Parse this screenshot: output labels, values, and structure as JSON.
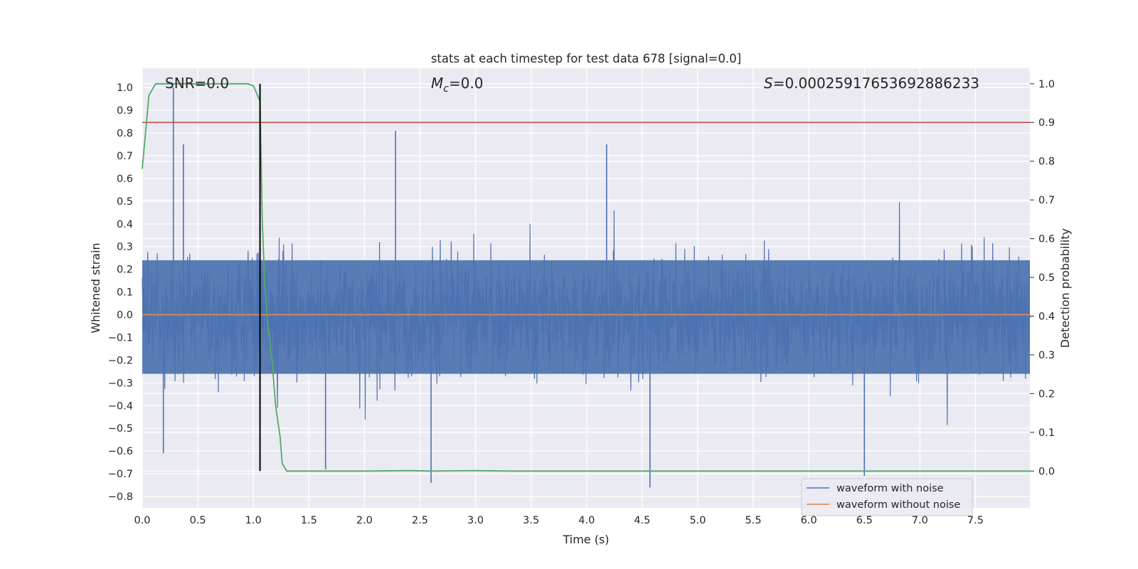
{
  "chart_data": {
    "type": "line",
    "title": "stats at each timestep for test data 678 [signal=0.0]",
    "xlabel": "Time (s)",
    "ylabel": "Whitened strain",
    "y2label": "Detection probability",
    "xlim": [
      0.0,
      7.99
    ],
    "ylim": [
      -0.85,
      1.085
    ],
    "y2lim": [
      -0.095,
      1.04
    ],
    "grid": true,
    "legend_position": "lower-right",
    "x_ticks": [
      "0.0",
      "0.5",
      "1.0",
      "1.5",
      "2.0",
      "2.5",
      "3.0",
      "3.5",
      "4.0",
      "4.5",
      "5.0",
      "5.5",
      "6.0",
      "6.5",
      "7.0",
      "7.5"
    ],
    "y_ticks": [
      "1.0",
      "0.9",
      "0.8",
      "0.7",
      "0.6",
      "0.5",
      "0.4",
      "0.3",
      "0.2",
      "0.1",
      "0.0",
      "−0.1",
      "−0.2",
      "−0.3",
      "−0.4",
      "−0.5",
      "−0.6",
      "−0.7",
      "−0.8"
    ],
    "y2_ticks": [
      "1.0",
      "0.9",
      "0.8",
      "0.7",
      "0.6",
      "0.5",
      "0.4",
      "0.3",
      "0.2",
      "0.1",
      "0.0"
    ],
    "annotations": {
      "snr": "SNR=0.0",
      "mc_symbol": "M",
      "mc_subscript": "c",
      "mc_value": "=0.0",
      "s_symbol": "S",
      "s_value": "=0.00025917653692886233"
    },
    "series": [
      {
        "name": "waveform with noise",
        "color": "#4c72b0",
        "axis": "left",
        "style": "dense noise, envelope approx ±0.4 with spikes",
        "peaks": [
          [
            0.28,
            1.0
          ],
          [
            0.37,
            0.75
          ],
          [
            2.28,
            0.81
          ],
          [
            4.18,
            0.75
          ],
          [
            0.19,
            -0.61
          ],
          [
            2.6,
            -0.74
          ],
          [
            4.57,
            -0.76
          ],
          [
            6.5,
            -0.71
          ],
          [
            1.65,
            -0.68
          ]
        ]
      },
      {
        "name": "waveform without noise",
        "color": "#dd8452",
        "axis": "left",
        "x": [
          0.0,
          7.99
        ],
        "y": [
          0.0,
          0.0
        ]
      },
      {
        "color": "#55a868",
        "axis": "right",
        "x": [
          0.0,
          0.06,
          0.12,
          0.2,
          0.4,
          0.7,
          0.95,
          1.0,
          1.06,
          1.08,
          1.1,
          1.13,
          1.17,
          1.2,
          1.24,
          1.26,
          1.3,
          1.35,
          1.5,
          2.0,
          2.4,
          2.6,
          3.0,
          3.3,
          4.0,
          5.0,
          6.0,
          7.0,
          7.99
        ],
        "y": [
          0.78,
          0.97,
          1.0,
          1.0,
          1.0,
          1.0,
          1.0,
          0.995,
          0.955,
          0.65,
          0.5,
          0.38,
          0.28,
          0.17,
          0.09,
          0.02,
          0.0,
          0.0,
          0.0,
          0.0,
          0.001,
          0.0,
          0.001,
          0.0,
          0.0,
          0.0,
          0.0,
          0.0,
          0.0
        ]
      }
    ],
    "threshold_line": {
      "color": "#c44e52",
      "axis": "right",
      "y": 0.9
    },
    "marker_line": {
      "color": "#000000",
      "x": 1.06,
      "axis": "right",
      "y_range": [
        0.0,
        1.0
      ]
    }
  }
}
